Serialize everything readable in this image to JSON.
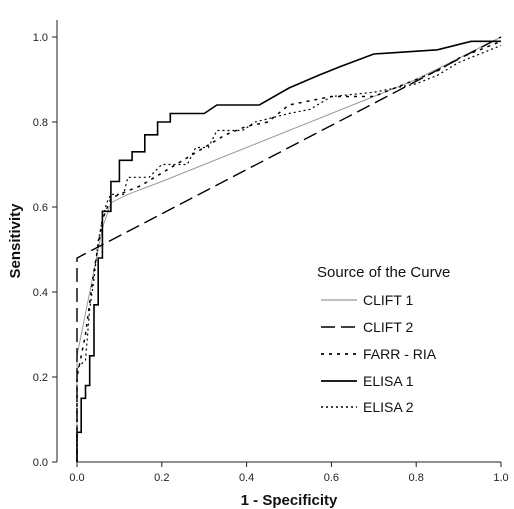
{
  "chart_data": {
    "type": "line",
    "xlabel": "1 - Specificity",
    "ylabel": "Sensitivity",
    "xlim": [
      0,
      1
    ],
    "ylim": [
      0,
      1
    ],
    "xticks": [
      "0.0",
      "0.2",
      "0.4",
      "0.6",
      "0.8",
      "1.0"
    ],
    "yticks": [
      "0.0",
      "0.2",
      "0.4",
      "0.6",
      "0.8",
      "1.0"
    ],
    "grid": false,
    "legend_title": "Source of the Curve",
    "legend_position": "bottom-right",
    "series": [
      {
        "name": "CLIFT 1",
        "color": "#9a9a9a",
        "dash": "",
        "width": 1,
        "points": [
          [
            0,
            0
          ],
          [
            0,
            0.25
          ],
          [
            0.02,
            0.35
          ],
          [
            0.04,
            0.45
          ],
          [
            0.06,
            0.55
          ],
          [
            0.08,
            0.61
          ],
          [
            0.12,
            0.63
          ],
          [
            0.2,
            0.66
          ],
          [
            0.3,
            0.7
          ],
          [
            0.4,
            0.74
          ],
          [
            0.5,
            0.78
          ],
          [
            0.6,
            0.82
          ],
          [
            0.7,
            0.86
          ],
          [
            0.8,
            0.9
          ],
          [
            0.9,
            0.95
          ],
          [
            1,
            1
          ]
        ]
      },
      {
        "name": "CLIFT 2",
        "color": "#000000",
        "dash": "14,6",
        "width": 1.4,
        "points": [
          [
            0,
            0
          ],
          [
            0,
            0.48
          ],
          [
            1,
            1
          ]
        ]
      },
      {
        "name": "FARR - RIA",
        "color": "#000000",
        "dash": "3,5",
        "width": 1.5,
        "points": [
          [
            0,
            0
          ],
          [
            0,
            0.2
          ],
          [
            0.02,
            0.3
          ],
          [
            0.04,
            0.45
          ],
          [
            0.06,
            0.57
          ],
          [
            0.08,
            0.62
          ],
          [
            0.1,
            0.63
          ],
          [
            0.15,
            0.65
          ],
          [
            0.2,
            0.68
          ],
          [
            0.3,
            0.74
          ],
          [
            0.35,
            0.77
          ],
          [
            0.4,
            0.79
          ],
          [
            0.45,
            0.8
          ],
          [
            0.5,
            0.84
          ],
          [
            0.6,
            0.86
          ],
          [
            0.7,
            0.86
          ],
          [
            0.8,
            0.9
          ],
          [
            0.85,
            0.92
          ],
          [
            0.9,
            0.95
          ],
          [
            1,
            0.99
          ]
        ]
      },
      {
        "name": "ELISA 1",
        "color": "#000000",
        "dash": "",
        "width": 1.6,
        "points": [
          [
            0,
            0
          ],
          [
            0,
            0.07
          ],
          [
            0.01,
            0.07
          ],
          [
            0.01,
            0.15
          ],
          [
            0.02,
            0.15
          ],
          [
            0.02,
            0.18
          ],
          [
            0.03,
            0.18
          ],
          [
            0.03,
            0.25
          ],
          [
            0.04,
            0.25
          ],
          [
            0.04,
            0.37
          ],
          [
            0.05,
            0.37
          ],
          [
            0.05,
            0.48
          ],
          [
            0.06,
            0.48
          ],
          [
            0.06,
            0.59
          ],
          [
            0.08,
            0.59
          ],
          [
            0.08,
            0.66
          ],
          [
            0.1,
            0.66
          ],
          [
            0.1,
            0.71
          ],
          [
            0.13,
            0.71
          ],
          [
            0.13,
            0.73
          ],
          [
            0.16,
            0.73
          ],
          [
            0.16,
            0.77
          ],
          [
            0.19,
            0.77
          ],
          [
            0.19,
            0.8
          ],
          [
            0.22,
            0.8
          ],
          [
            0.22,
            0.82
          ],
          [
            0.3,
            0.82
          ],
          [
            0.33,
            0.84
          ],
          [
            0.43,
            0.84
          ],
          [
            0.5,
            0.88
          ],
          [
            0.57,
            0.91
          ],
          [
            0.62,
            0.93
          ],
          [
            0.7,
            0.96
          ],
          [
            0.85,
            0.97
          ],
          [
            0.93,
            0.99
          ],
          [
            1,
            0.99
          ]
        ]
      },
      {
        "name": "ELISA 2",
        "color": "#000000",
        "dash": "2,3",
        "width": 1.2,
        "points": [
          [
            0,
            0
          ],
          [
            0,
            0.22
          ],
          [
            0.02,
            0.24
          ],
          [
            0.03,
            0.36
          ],
          [
            0.04,
            0.43
          ],
          [
            0.05,
            0.52
          ],
          [
            0.06,
            0.57
          ],
          [
            0.07,
            0.61
          ],
          [
            0.08,
            0.63
          ],
          [
            0.11,
            0.63
          ],
          [
            0.12,
            0.67
          ],
          [
            0.17,
            0.67
          ],
          [
            0.2,
            0.7
          ],
          [
            0.26,
            0.7
          ],
          [
            0.28,
            0.74
          ],
          [
            0.31,
            0.74
          ],
          [
            0.33,
            0.78
          ],
          [
            0.39,
            0.78
          ],
          [
            0.42,
            0.8
          ],
          [
            0.5,
            0.82
          ],
          [
            0.55,
            0.83
          ],
          [
            0.6,
            0.86
          ],
          [
            0.7,
            0.87
          ],
          [
            0.8,
            0.89
          ],
          [
            0.85,
            0.91
          ],
          [
            0.9,
            0.94
          ],
          [
            0.95,
            0.96
          ],
          [
            1,
            0.98
          ]
        ]
      }
    ]
  }
}
